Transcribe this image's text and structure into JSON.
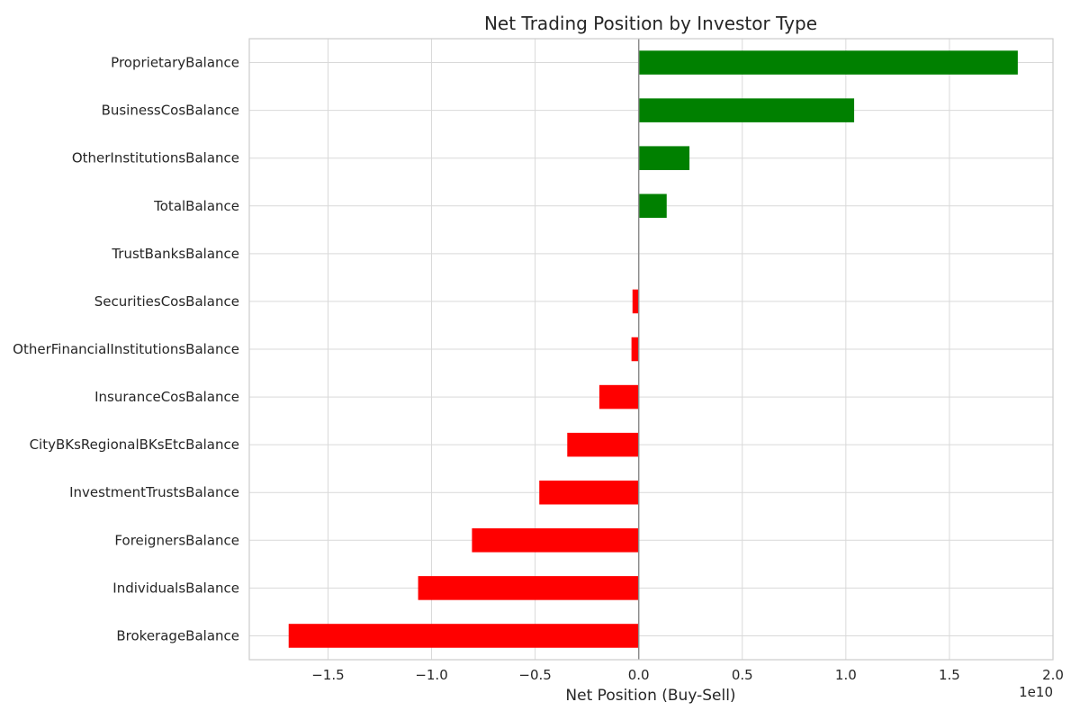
{
  "chart_data": {
    "type": "bar",
    "orientation": "horizontal",
    "title": "Net Trading Position by Investor Type",
    "xlabel": "Net Position (Buy-Sell)",
    "ylabel": "",
    "x_offset_label": "1e10",
    "x_scale": 10000000000,
    "xlim": [
      -1.88,
      2.0
    ],
    "x_ticks": [
      -1.5,
      -1.0,
      -0.5,
      0.0,
      0.5,
      1.0,
      1.5,
      2.0
    ],
    "x_tick_labels": [
      "−1.5",
      "−1.0",
      "−0.5",
      "0.0",
      "0.5",
      "1.0",
      "1.5",
      "2.0"
    ],
    "grid": true,
    "positive_color": "#008000",
    "negative_color": "#ff0000",
    "categories": [
      "ProprietaryBalance",
      "BusinessCosBalance",
      "OtherInstitutionsBalance",
      "TotalBalance",
      "TrustBanksBalance",
      "SecuritiesCosBalance",
      "OtherFinancialInstitutionsBalance",
      "InsuranceCosBalance",
      "CityBKsRegionalBKsEtcBalance",
      "InvestmentTrustsBalance",
      "ForeignersBalance",
      "IndividualsBalance",
      "BrokerageBalance"
    ],
    "values": [
      1.83,
      1.04,
      0.245,
      0.135,
      0.0,
      -0.03,
      -0.035,
      -0.19,
      -0.345,
      -0.48,
      -0.805,
      -1.065,
      -1.69
    ]
  }
}
